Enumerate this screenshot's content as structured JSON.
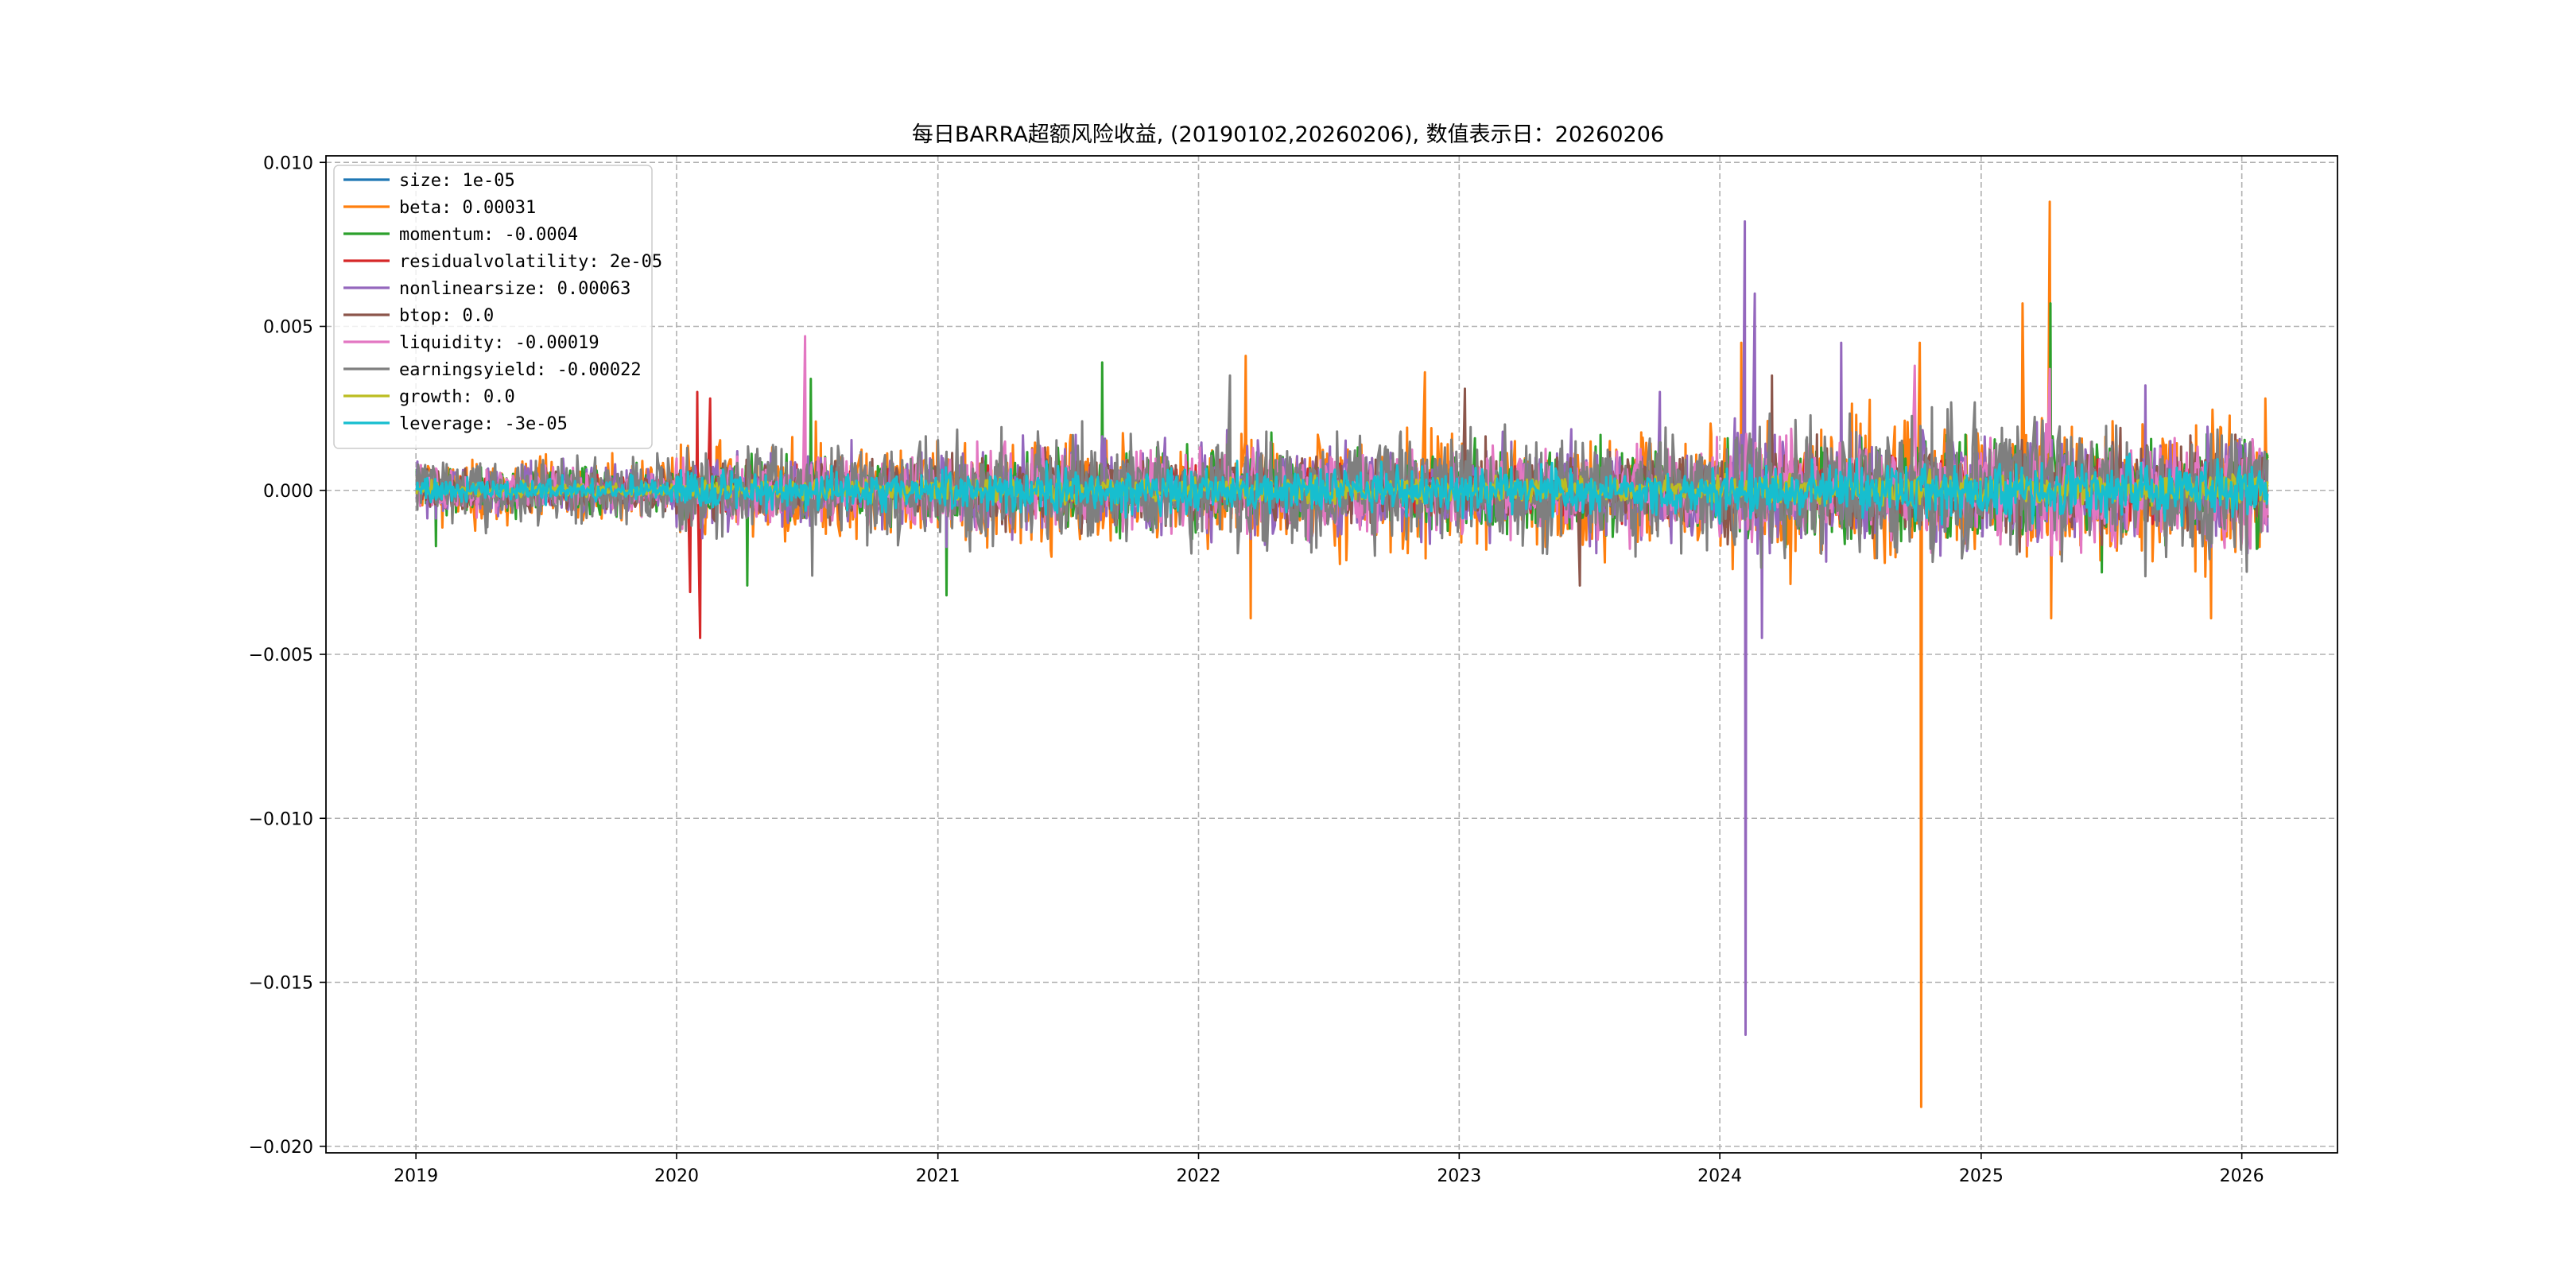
{
  "chart_data": {
    "type": "line",
    "title": "每日BARRA超额风险收益, (20190102,20260206),  数值表示日：20260206",
    "xlabel": "",
    "ylabel": "",
    "x_ticks": [
      "2019",
      "2020",
      "2021",
      "2022",
      "2023",
      "2024",
      "2025",
      "2026"
    ],
    "y_ticks": [
      "0.010",
      "0.005",
      "0.000",
      "−0.005",
      "−0.010",
      "−0.015",
      "−0.020"
    ],
    "xlim": [
      "2018-08-28",
      "2026-05-15"
    ],
    "ylim": [
      -0.0202,
      0.0102
    ],
    "x_range": [
      "2019-01-02",
      "2026-02-06"
    ],
    "grid": true,
    "grid_style": "dashed",
    "legend_position": "upper-left",
    "series": [
      {
        "name": "size",
        "label": "size: 1e-05",
        "color": "#1f77b4",
        "amp": 0.00022
      },
      {
        "name": "beta",
        "label": "beta: 0.00031",
        "color": "#ff7f0e",
        "amp": 0.0011,
        "spikes": [
          [
            "2019-07-03",
            0.0011
          ],
          [
            "2020-07-15",
            0.0021
          ],
          [
            "2022-03-09",
            0.0041
          ],
          [
            "2022-03-16",
            -0.0039
          ],
          [
            "2022-11-15",
            0.0036
          ],
          [
            "2024-02-01",
            0.0045
          ],
          [
            "2024-10-08",
            0.0045
          ],
          [
            "2024-10-10",
            -0.0188
          ],
          [
            "2025-04-08",
            0.0088
          ],
          [
            "2025-04-10",
            -0.0039
          ],
          [
            "2025-03-01",
            0.0057
          ],
          [
            "2025-11-20",
            -0.0039
          ],
          [
            "2026-02-04",
            0.0028
          ]
        ]
      },
      {
        "name": "momentum",
        "label": "momentum: -0.0004",
        "color": "#2ca02c",
        "amp": 0.0008,
        "spikes": [
          [
            "2019-01-30",
            -0.0017
          ],
          [
            "2020-04-10",
            -0.0029
          ],
          [
            "2020-07-08",
            0.0034
          ],
          [
            "2021-01-14",
            -0.0032
          ],
          [
            "2021-08-20",
            0.0039
          ],
          [
            "2025-04-09",
            0.0057
          ],
          [
            "2025-06-20",
            -0.0025
          ]
        ]
      },
      {
        "name": "residualvolatility",
        "label": "residualvolatility: 2e-05",
        "color": "#d62728",
        "amp": 0.0005,
        "spikes": [
          [
            "2020-01-31",
            0.003
          ],
          [
            "2020-02-03",
            -0.0045
          ],
          [
            "2020-01-20",
            -0.0031
          ],
          [
            "2020-02-18",
            0.0028
          ]
        ]
      },
      {
        "name": "nonlinearsize",
        "label": "nonlinearsize: 0.00063",
        "color": "#9467bd",
        "amp": 0.0009,
        "spikes": [
          [
            "2023-10-10",
            0.003
          ],
          [
            "2024-02-06",
            0.0082
          ],
          [
            "2024-02-07",
            -0.0166
          ],
          [
            "2024-02-20",
            0.006
          ],
          [
            "2024-03-01",
            -0.0045
          ],
          [
            "2024-06-20",
            0.0045
          ],
          [
            "2025-08-20",
            0.0032
          ]
        ]
      },
      {
        "name": "btop",
        "label": "btop: 0.0",
        "color": "#8c564b",
        "amp": 0.0007,
        "spikes": [
          [
            "2023-01-10",
            0.0031
          ],
          [
            "2023-06-20",
            -0.0029
          ],
          [
            "2024-03-15",
            0.0035
          ]
        ]
      },
      {
        "name": "liquidity",
        "label": "liquidity: -0.00019",
        "color": "#e377c2",
        "amp": 0.0008,
        "spikes": [
          [
            "2020-06-30",
            0.0047
          ],
          [
            "2024-09-30",
            0.0038
          ],
          [
            "2025-04-07",
            0.0037
          ]
        ]
      },
      {
        "name": "earningsyield",
        "label": "earningsyield: -0.00022",
        "color": "#7f7f7f",
        "amp": 0.0011,
        "spikes": [
          [
            "2020-07-10",
            -0.0026
          ],
          [
            "2022-02-15",
            0.0035
          ]
        ]
      },
      {
        "name": "growth",
        "label": "growth: 0.0",
        "color": "#bcbd22",
        "amp": 0.00025
      },
      {
        "name": "leverage",
        "label": "leverage: -3e-05",
        "color": "#17becf",
        "amp": 0.00045
      }
    ]
  }
}
